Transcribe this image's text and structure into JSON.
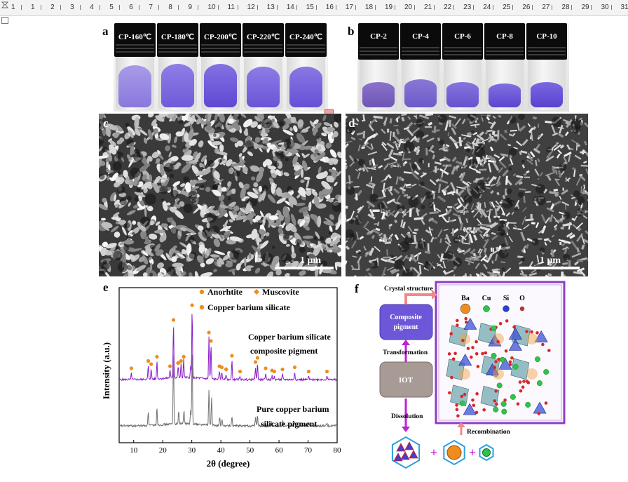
{
  "ruler": {
    "numbers": [
      "1",
      "1",
      "2",
      "3",
      "4",
      "5",
      "6",
      "7",
      "8",
      "9",
      "10",
      "11",
      "12",
      "13",
      "14",
      "15",
      "16",
      "17",
      "18",
      "19",
      "20",
      "21",
      "22",
      "23",
      "24",
      "25",
      "26",
      "27",
      "28",
      "29",
      "30",
      "31"
    ]
  },
  "panel_a": {
    "label": "a",
    "vials": [
      "CP-160℃",
      "CP-180℃",
      "CP-200℃",
      "CP-220℃",
      "CP-240℃"
    ]
  },
  "panel_b": {
    "label": "b",
    "vials": [
      "CP-2",
      "CP-4",
      "CP-6",
      "CP-8",
      "CP-10"
    ]
  },
  "panel_c": {
    "label": "c",
    "scale": "1 μm"
  },
  "panel_d": {
    "label": "d",
    "scale": "1 μm"
  },
  "panel_e": {
    "label": "e",
    "legend": {
      "anorthite": "Anorhtite",
      "muscovite": "Muscovite",
      "cbs": "Copper barium silicate"
    },
    "trace_top_label": [
      "Copper barium silicate",
      "composite pigment"
    ],
    "trace_bottom_label": [
      "Pure copper barium",
      "silicate pigment"
    ],
    "colors": {
      "top": "#8a1cc9",
      "bottom": "#707070",
      "marker": "#f08c1e"
    }
  },
  "panel_f": {
    "label": "f",
    "crystal_structure": "Crystal structure",
    "composite_box": [
      "Composite",
      "pigment"
    ],
    "transformation": "Transformation",
    "iot_box": "IOT",
    "dissolution": "Dissolution",
    "recombination": "Recombination",
    "atoms": [
      "Ba",
      "Cu",
      "Si",
      "O"
    ],
    "plus": "+"
  },
  "chart_data": {
    "type": "line",
    "title": "",
    "xlabel": "2θ (degree)",
    "ylabel": "Intensity (a.u.)",
    "xlim": [
      5,
      80
    ],
    "x_ticks": [
      10,
      20,
      30,
      40,
      50,
      60,
      70,
      80
    ],
    "legend": [
      "Anorhtite",
      "Muscovite",
      "Copper barium silicate"
    ],
    "series": [
      {
        "name": "Copper barium silicate composite pigment",
        "peaks": [
          {
            "x": 9.2,
            "h": 0.06
          },
          {
            "x": 15.0,
            "h": 0.13
          },
          {
            "x": 16.0,
            "h": 0.1
          },
          {
            "x": 18.0,
            "h": 0.17
          },
          {
            "x": 22.5,
            "h": 0.08
          },
          {
            "x": 23.7,
            "h": 0.52
          },
          {
            "x": 25.3,
            "h": 0.11
          },
          {
            "x": 26.3,
            "h": 0.13
          },
          {
            "x": 27.2,
            "h": 0.17
          },
          {
            "x": 29.6,
            "h": 0.11
          },
          {
            "x": 30.1,
            "h": 0.66
          },
          {
            "x": 35.9,
            "h": 0.4
          },
          {
            "x": 36.6,
            "h": 0.32
          },
          {
            "x": 39.5,
            "h": 0.08
          },
          {
            "x": 40.3,
            "h": 0.07
          },
          {
            "x": 41.8,
            "h": 0.05
          },
          {
            "x": 43.8,
            "h": 0.18
          },
          {
            "x": 46.6,
            "h": 0.03
          },
          {
            "x": 51.9,
            "h": 0.12
          },
          {
            "x": 52.6,
            "h": 0.16
          },
          {
            "x": 55.4,
            "h": 0.06
          },
          {
            "x": 57.6,
            "h": 0.04
          },
          {
            "x": 58.4,
            "h": 0.03
          },
          {
            "x": 61.2,
            "h": 0.05
          },
          {
            "x": 65.4,
            "h": 0.07
          },
          {
            "x": 70.2,
            "h": 0.03
          },
          {
            "x": 76.5,
            "h": 0.03
          }
        ]
      },
      {
        "name": "Pure copper barium silicate pigment",
        "peaks": [
          {
            "x": 15.0,
            "h": 0.13
          },
          {
            "x": 18.0,
            "h": 0.16
          },
          {
            "x": 23.7,
            "h": 0.67
          },
          {
            "x": 25.5,
            "h": 0.12
          },
          {
            "x": 27.3,
            "h": 0.12
          },
          {
            "x": 29.6,
            "h": 0.12
          },
          {
            "x": 30.1,
            "h": 0.67
          },
          {
            "x": 35.9,
            "h": 0.32
          },
          {
            "x": 36.8,
            "h": 0.24
          },
          {
            "x": 39.6,
            "h": 0.07
          },
          {
            "x": 40.4,
            "h": 0.05
          },
          {
            "x": 43.8,
            "h": 0.09
          },
          {
            "x": 51.9,
            "h": 0.08
          },
          {
            "x": 52.6,
            "h": 0.1
          },
          {
            "x": 57.5,
            "h": 0.03
          },
          {
            "x": 61.3,
            "h": 0.04
          },
          {
            "x": 65.4,
            "h": 0.04
          },
          {
            "x": 70.3,
            "h": 0.03
          },
          {
            "x": 76.5,
            "h": 0.02
          }
        ]
      }
    ],
    "markers": {
      "anorthite": [
        9.2,
        15.0,
        16.0,
        18.0,
        22.5,
        27.2,
        39.5,
        43.8,
        52.6,
        55.4,
        58.4,
        61.2,
        65.4,
        70.2,
        76.5
      ],
      "muscovite": [
        25.3,
        41.8
      ],
      "copper_barium_silicate": [
        23.7,
        26.3,
        30.1,
        35.9,
        36.6,
        40.3,
        46.6,
        51.9,
        57.6
      ]
    }
  }
}
